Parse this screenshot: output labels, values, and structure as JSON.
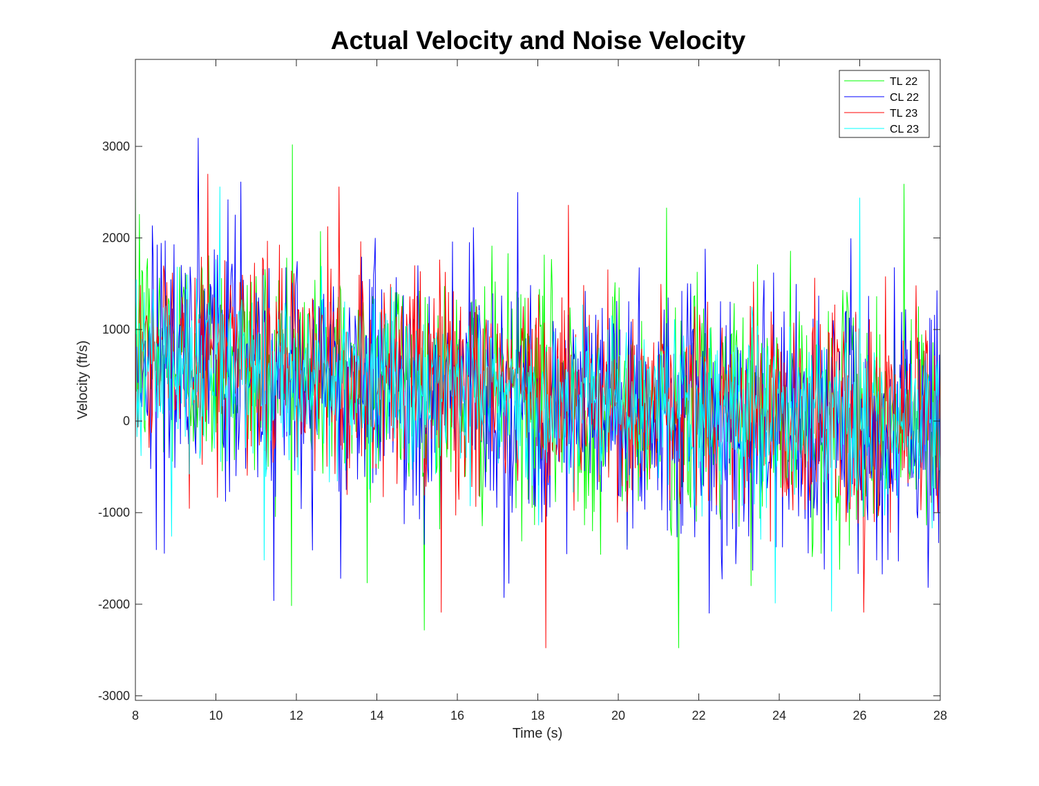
{
  "chart_data": {
    "type": "line",
    "title": "Actual Velocity and Noise Velocity",
    "xlabel": "Time (s)",
    "ylabel": "Velocity (ft/s)",
    "xlim": [
      8,
      28
    ],
    "ylim": [
      -3050,
      3950
    ],
    "xticks": [
      8,
      10,
      12,
      14,
      16,
      18,
      20,
      22,
      24,
      26,
      28
    ],
    "yticks": [
      -3000,
      -2000,
      -1000,
      0,
      1000,
      2000,
      3000
    ],
    "xtick_labels": [
      "8",
      "10",
      "12",
      "14",
      "16",
      "18",
      "20",
      "22",
      "24",
      "26",
      "28"
    ],
    "ytick_labels": [
      "-3000",
      "-2000",
      "-1000",
      "0",
      "1000",
      "2000",
      "3000"
    ],
    "grid": false,
    "legend_position": "top-right",
    "sample_step": 0.02,
    "series": [
      {
        "name": "TL 22",
        "color": "#00ff00",
        "trend": [
          [
            8,
            800
          ],
          [
            12,
            600
          ],
          [
            16,
            400
          ],
          [
            20,
            150
          ],
          [
            24,
            50
          ],
          [
            28,
            -50
          ]
        ],
        "spread": 650,
        "extremes": [
          [
            11.9,
            3020
          ],
          [
            27.1,
            2590
          ],
          [
            21.5,
            -2480
          ],
          [
            13.75,
            -1770
          ],
          [
            8.1,
            2260
          ],
          [
            21.2,
            2330
          ]
        ]
      },
      {
        "name": "CL 22",
        "color": "#0000ff",
        "trend": [
          [
            8,
            750
          ],
          [
            12,
            550
          ],
          [
            16,
            350
          ],
          [
            20,
            100
          ],
          [
            24,
            0
          ],
          [
            28,
            -100
          ]
        ],
        "spread": 700,
        "extremes": [
          [
            17.5,
            2500
          ],
          [
            22.25,
            -2100
          ],
          [
            17.15,
            -1930
          ],
          [
            10.3,
            2420
          ],
          [
            13.1,
            -1720
          ],
          [
            27.7,
            -1820
          ]
        ]
      },
      {
        "name": "TL 23",
        "color": "#ff0000",
        "trend": [
          [
            8,
            800
          ],
          [
            12,
            600
          ],
          [
            16,
            400
          ],
          [
            20,
            200
          ],
          [
            24,
            100
          ],
          [
            28,
            0
          ]
        ],
        "spread": 600,
        "extremes": [
          [
            9.8,
            2700
          ],
          [
            13.05,
            2560
          ],
          [
            18.2,
            -2480
          ],
          [
            15.6,
            -2090
          ],
          [
            26.1,
            -2090
          ],
          [
            18.75,
            2360
          ]
        ]
      },
      {
        "name": "CL 23",
        "color": "#00ffff",
        "trend": [
          [
            8,
            700
          ],
          [
            12,
            500
          ],
          [
            16,
            350
          ],
          [
            20,
            150
          ],
          [
            24,
            50
          ],
          [
            28,
            -50
          ]
        ],
        "spread": 450,
        "extremes": [
          [
            10.1,
            2560
          ],
          [
            26,
            2440
          ],
          [
            25.3,
            -2080
          ],
          [
            11.2,
            -1520
          ],
          [
            8.9,
            -1260
          ],
          [
            23.9,
            -1990
          ]
        ]
      }
    ]
  }
}
